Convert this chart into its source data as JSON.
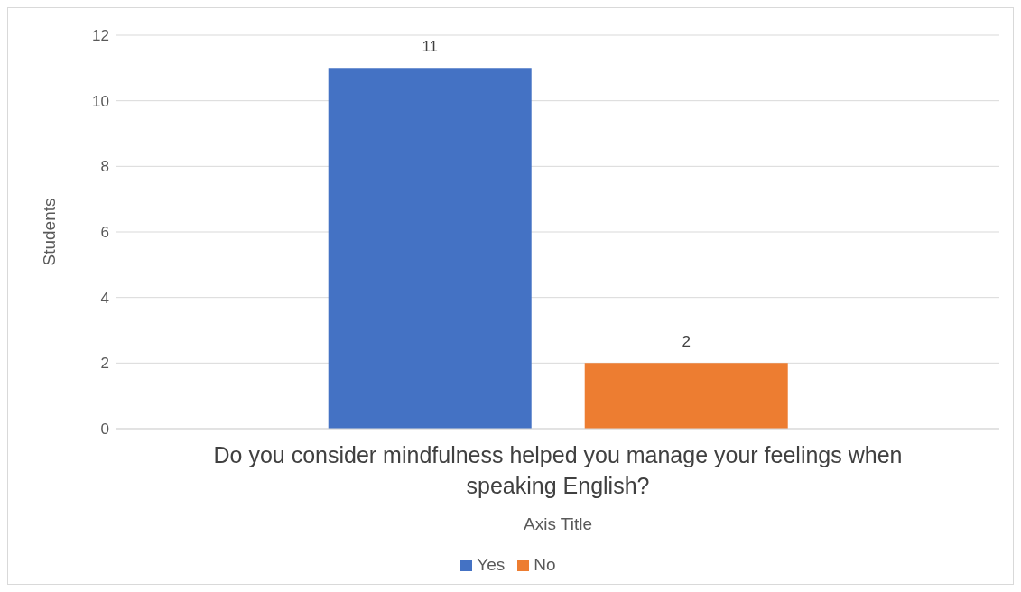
{
  "chart_data": {
    "type": "bar",
    "categories": [
      "Do you consider mindfulness helped you manage your feelings when speaking English?"
    ],
    "series": [
      {
        "name": "Yes",
        "color": "#4472c4",
        "values": [
          11
        ]
      },
      {
        "name": "No",
        "color": "#ed7d31",
        "values": [
          2
        ]
      }
    ],
    "xlabel": "Axis Title",
    "ylabel": "Students",
    "ylim": [
      0,
      12
    ],
    "yticks": [
      0,
      2,
      4,
      6,
      8,
      10,
      12
    ],
    "grid": "y",
    "data_labels": true,
    "legend": "bottom"
  }
}
